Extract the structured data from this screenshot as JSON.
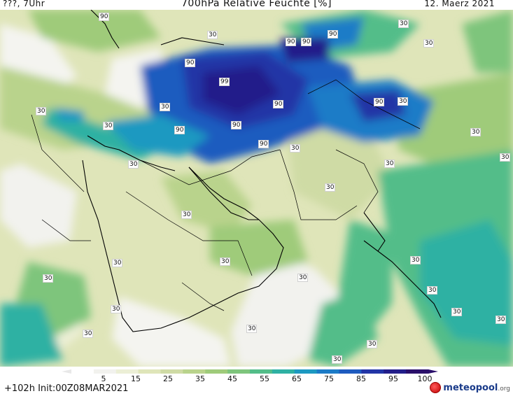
{
  "header": {
    "left": "???, 7Uhr",
    "title": "700hPa Relative Feuchte [%]",
    "date": "12. Maerz 2021"
  },
  "contour_labels": [
    "90",
    "30",
    "90",
    "90",
    "90",
    "30",
    "30",
    "90",
    "99",
    "90",
    "30",
    "90",
    "90",
    "30",
    "30",
    "90",
    "30",
    "90",
    "30",
    "30",
    "30",
    "30",
    "30",
    "30",
    "30",
    "30",
    "30",
    "30",
    "30",
    "30",
    "30",
    "30",
    "30",
    "30",
    "30",
    "30",
    "30",
    "30"
  ],
  "legend": {
    "ticks": [
      "5",
      "15",
      "25",
      "35",
      "45",
      "55",
      "65",
      "75",
      "85",
      "95",
      "100"
    ],
    "colors": [
      "#ffffff",
      "#f2f2ee",
      "#ecefd6",
      "#dfe5b9",
      "#cfdba5",
      "#b9d38c",
      "#9fcb7a",
      "#7ec57c",
      "#53bd89",
      "#2fb1a3",
      "#1d99c1",
      "#1c7bc7",
      "#1e5bbf",
      "#2235a6",
      "#231e8a",
      "#2a0f6a"
    ]
  },
  "footer": {
    "run": "+102h Init:00Z08MAR2021"
  },
  "logo": {
    "brand": "meteopool",
    "tld": ".org"
  }
}
